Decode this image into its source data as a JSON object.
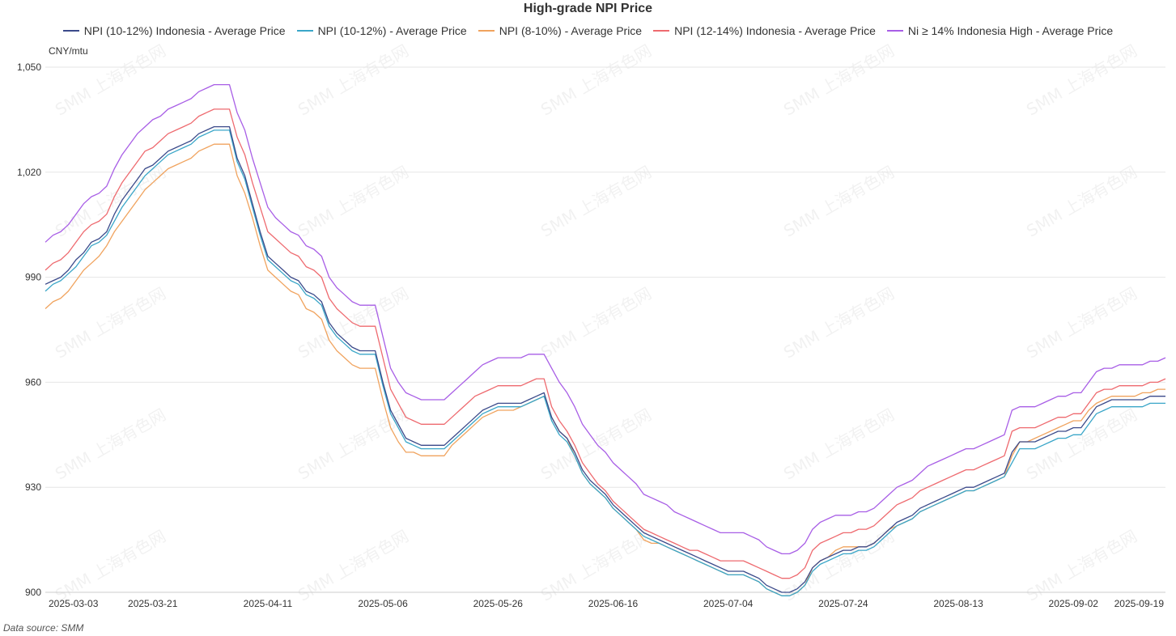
{
  "chart_data": {
    "type": "line",
    "title": "High-grade NPI Price",
    "y_unit": "CNY/mtu",
    "ylim": [
      900,
      1050
    ],
    "y_ticks": [
      900,
      930,
      960,
      990,
      1020,
      1050
    ],
    "y_tick_labels": [
      "900",
      "930",
      "960",
      "990",
      "1,020",
      "1,050"
    ],
    "x_tick_labels": [
      "2025-03-03",
      "2025-03-21",
      "2025-04-11",
      "2025-05-06",
      "2025-05-26",
      "2025-06-16",
      "2025-07-04",
      "2025-07-24",
      "2025-08-13",
      "2025-09-02",
      "2025-09-19"
    ],
    "x_tick_index": [
      0,
      14,
      29,
      44,
      59,
      74,
      89,
      104,
      119,
      134,
      146
    ],
    "grid": "horizontal",
    "legend_position": "top",
    "watermark_text": "SMM 上海有色网",
    "source_note": "Data source:  SMM",
    "series": [
      {
        "name": "NPI (10-12%) Indonesia - Average Price",
        "color": "#3b4a8a",
        "values": [
          988,
          989,
          990,
          992,
          995,
          997,
          1000,
          1001,
          1003,
          1008,
          1012,
          1015,
          1018,
          1021,
          1022,
          1024,
          1026,
          1027,
          1028,
          1029,
          1031,
          1032,
          1033,
          1033,
          1033,
          1024,
          1019,
          1011,
          1003,
          996,
          994,
          992,
          990,
          989,
          986,
          985,
          983,
          977,
          974,
          972,
          970,
          969,
          969,
          969,
          960,
          952,
          948,
          944,
          943,
          942,
          942,
          942,
          942,
          944,
          946,
          948,
          950,
          952,
          953,
          954,
          954,
          954,
          954,
          955,
          956,
          957,
          950,
          946,
          944,
          940,
          935,
          932,
          930,
          928,
          925,
          923,
          921,
          919,
          917,
          916,
          915,
          914,
          913,
          912,
          911,
          910,
          909,
          908,
          907,
          906,
          906,
          906,
          905,
          904,
          902,
          901,
          900,
          900,
          901,
          903,
          907,
          909,
          910,
          911,
          912,
          912,
          913,
          913,
          914,
          916,
          918,
          920,
          921,
          922,
          924,
          925,
          926,
          927,
          928,
          929,
          930,
          930,
          931,
          932,
          933,
          934,
          940,
          943,
          943,
          943,
          944,
          945,
          946,
          946,
          947,
          947,
          950,
          953,
          954,
          955,
          955,
          955,
          955,
          955,
          956,
          956,
          956
        ]
      },
      {
        "name": "NPI (10-12%) - Average Price",
        "color": "#3aa6c8",
        "values": [
          986,
          988,
          989,
          991,
          993,
          996,
          999,
          1000,
          1002,
          1006,
          1010,
          1013,
          1016,
          1019,
          1021,
          1023,
          1025,
          1026,
          1027,
          1028,
          1030,
          1031,
          1032,
          1032,
          1032,
          1023,
          1018,
          1010,
          1002,
          995,
          993,
          991,
          989,
          988,
          985,
          984,
          982,
          976,
          973,
          971,
          969,
          968,
          968,
          968,
          959,
          951,
          947,
          943,
          942,
          941,
          941,
          941,
          941,
          943,
          945,
          947,
          949,
          951,
          952,
          953,
          953,
          953,
          953,
          954,
          955,
          956,
          949,
          945,
          943,
          939,
          934,
          931,
          929,
          927,
          924,
          922,
          920,
          918,
          916,
          915,
          914,
          913,
          912,
          911,
          910,
          909,
          908,
          907,
          906,
          905,
          905,
          905,
          904,
          903,
          901,
          900,
          899,
          899,
          900,
          902,
          906,
          908,
          909,
          910,
          911,
          911,
          912,
          912,
          913,
          915,
          917,
          919,
          920,
          921,
          923,
          924,
          925,
          926,
          927,
          928,
          929,
          929,
          930,
          931,
          932,
          933,
          937,
          941,
          941,
          941,
          942,
          943,
          944,
          944,
          945,
          945,
          948,
          951,
          952,
          953,
          953,
          953,
          953,
          953,
          954,
          954,
          954
        ]
      },
      {
        "name": "NPI (8-10%) - Average Price",
        "color": "#f0a35e",
        "values": [
          981,
          983,
          984,
          986,
          989,
          992,
          994,
          996,
          999,
          1003,
          1006,
          1009,
          1012,
          1015,
          1017,
          1019,
          1021,
          1022,
          1023,
          1024,
          1026,
          1027,
          1028,
          1028,
          1028,
          1019,
          1014,
          1007,
          999,
          992,
          990,
          988,
          986,
          985,
          981,
          980,
          978,
          972,
          969,
          967,
          965,
          964,
          964,
          964,
          955,
          947,
          943,
          940,
          940,
          939,
          939,
          939,
          939,
          942,
          944,
          946,
          948,
          950,
          951,
          952,
          952,
          952,
          953,
          954,
          955,
          956,
          950,
          946,
          944,
          939,
          934,
          931,
          929,
          927,
          924,
          922,
          920,
          918,
          915,
          914,
          914,
          913,
          912,
          911,
          910,
          909,
          908,
          907,
          906,
          905,
          905,
          905,
          904,
          903,
          901,
          900,
          899,
          899,
          900,
          902,
          907,
          909,
          910,
          912,
          913,
          913,
          913,
          913,
          914,
          916,
          918,
          919,
          920,
          921,
          923,
          924,
          925,
          926,
          927,
          928,
          929,
          929,
          930,
          931,
          932,
          933,
          939,
          943,
          943,
          944,
          945,
          946,
          947,
          948,
          949,
          949,
          952,
          954,
          955,
          956,
          956,
          956,
          956,
          957,
          957,
          958,
          958
        ]
      },
      {
        "name": "NPI (12-14%) Indonesia - Average Price",
        "color": "#ee6a6f",
        "values": [
          992,
          994,
          995,
          997,
          1000,
          1003,
          1005,
          1006,
          1008,
          1013,
          1017,
          1020,
          1023,
          1026,
          1027,
          1029,
          1031,
          1032,
          1033,
          1034,
          1036,
          1037,
          1038,
          1038,
          1038,
          1030,
          1025,
          1017,
          1010,
          1003,
          1001,
          999,
          997,
          996,
          993,
          992,
          990,
          984,
          981,
          979,
          977,
          976,
          976,
          976,
          967,
          958,
          954,
          950,
          949,
          948,
          948,
          948,
          948,
          950,
          952,
          954,
          956,
          957,
          958,
          959,
          959,
          959,
          959,
          960,
          961,
          961,
          953,
          949,
          946,
          942,
          937,
          934,
          931,
          929,
          926,
          924,
          922,
          920,
          918,
          917,
          916,
          915,
          914,
          913,
          912,
          912,
          911,
          910,
          909,
          909,
          909,
          909,
          908,
          907,
          906,
          905,
          904,
          904,
          905,
          907,
          912,
          914,
          915,
          916,
          917,
          917,
          918,
          918,
          919,
          921,
          923,
          925,
          926,
          927,
          929,
          930,
          931,
          932,
          933,
          934,
          935,
          935,
          936,
          937,
          938,
          939,
          946,
          947,
          947,
          947,
          948,
          949,
          950,
          950,
          951,
          951,
          954,
          957,
          958,
          958,
          959,
          959,
          959,
          959,
          960,
          960,
          961
        ]
      },
      {
        "name": "Ni ≥ 14% Indonesia High - Average Price",
        "color": "#a85ee6",
        "values": [
          1000,
          1002,
          1003,
          1005,
          1008,
          1011,
          1013,
          1014,
          1016,
          1021,
          1025,
          1028,
          1031,
          1033,
          1035,
          1036,
          1038,
          1039,
          1040,
          1041,
          1043,
          1044,
          1045,
          1045,
          1045,
          1037,
          1032,
          1024,
          1017,
          1010,
          1007,
          1005,
          1003,
          1002,
          999,
          998,
          996,
          990,
          987,
          985,
          983,
          982,
          982,
          982,
          973,
          964,
          960,
          957,
          956,
          955,
          955,
          955,
          955,
          957,
          959,
          961,
          963,
          965,
          966,
          967,
          967,
          967,
          967,
          968,
          968,
          968,
          964,
          960,
          957,
          953,
          948,
          945,
          942,
          940,
          937,
          935,
          933,
          931,
          928,
          927,
          926,
          925,
          923,
          922,
          921,
          920,
          919,
          918,
          917,
          917,
          917,
          917,
          916,
          915,
          913,
          912,
          911,
          911,
          912,
          914,
          918,
          920,
          921,
          922,
          922,
          922,
          923,
          923,
          924,
          926,
          928,
          930,
          931,
          932,
          934,
          936,
          937,
          938,
          939,
          940,
          941,
          941,
          942,
          943,
          944,
          945,
          952,
          953,
          953,
          953,
          954,
          955,
          956,
          956,
          957,
          957,
          960,
          963,
          964,
          964,
          965,
          965,
          965,
          965,
          966,
          966,
          967
        ]
      }
    ]
  }
}
